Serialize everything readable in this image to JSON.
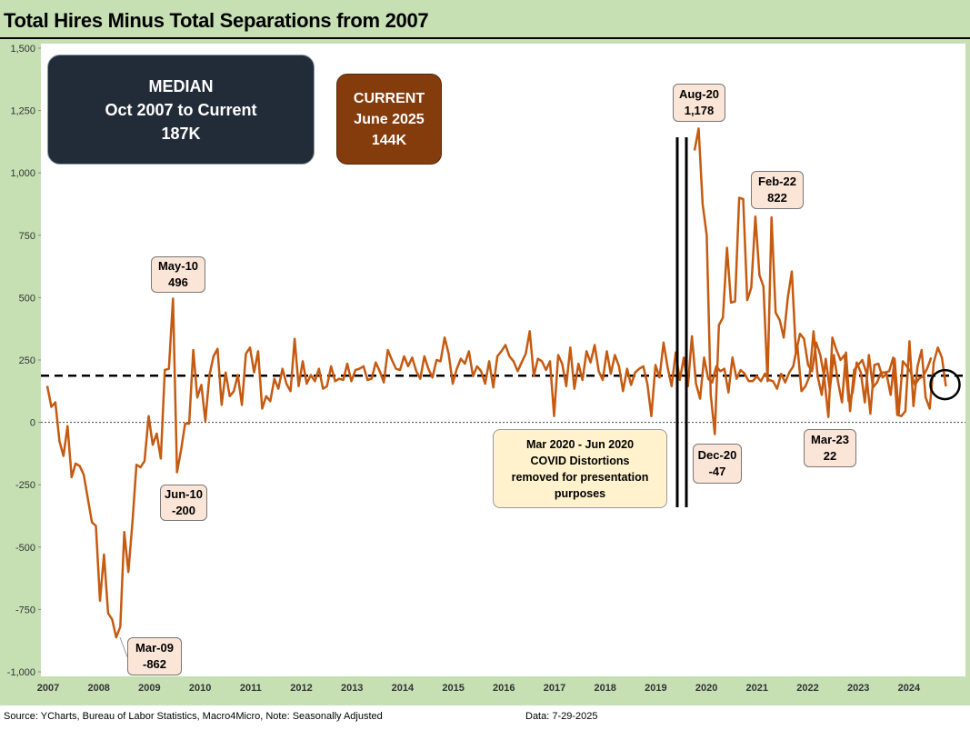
{
  "title": "Total Hires Minus Total Separations from 2007",
  "median_box": {
    "line1": "MEDIAN",
    "line2": "Oct 2007 to Current",
    "line3": "187K"
  },
  "current_box": {
    "line1": "CURRENT",
    "line2": "June 2025",
    "line3": "144K"
  },
  "covid_note": {
    "line1": "Mar 2020  - Jun 2020",
    "line2": "COVID Distortions",
    "line3": "removed for presentation",
    "line4": "purposes"
  },
  "footer": {
    "source": "Source: YCharts, Bureau of Labor Statistics, Macro4Micro, Note: Seasonally Adjusted",
    "data_date": "Data: 7-29-2025"
  },
  "callouts": {
    "may10": {
      "label": "May-10",
      "value": "496"
    },
    "jun10": {
      "label": "Jun-10",
      "value": "-200"
    },
    "mar09": {
      "label": "Mar-09",
      "value": "-862"
    },
    "aug20": {
      "label": "Aug-20",
      "value": "1,178"
    },
    "dec20": {
      "label": "Dec-20",
      "value": "-47"
    },
    "feb22": {
      "label": "Feb-22",
      "value": "822"
    },
    "mar23": {
      "label": "Mar-23",
      "value": "22"
    }
  },
  "colors": {
    "series": "#c55a11",
    "median_line": "#000000",
    "zero_line": "#444444"
  },
  "chart_data": {
    "type": "line",
    "title": "Total Hires Minus Total Separations from 2007",
    "y_ticks": [
      "1,500",
      "1,250",
      "1,000",
      "750",
      "500",
      "250",
      "0",
      "-250",
      "-500",
      "-750",
      "-1,000"
    ],
    "ylim": [
      -1000,
      1500
    ],
    "x_ticks": [
      "2007",
      "2008",
      "2009",
      "2010",
      "2011",
      "2012",
      "2013",
      "2014",
      "2015",
      "2016",
      "2017",
      "2018",
      "2019",
      "2020",
      "2021",
      "2022",
      "2023",
      "2024"
    ],
    "median": 187,
    "grid": false,
    "series": [
      {
        "segment": "Oct 2007 - Feb 2020",
        "values": [
          146,
          62,
          80,
          -75,
          -135,
          -15,
          -220,
          -165,
          -175,
          -210,
          -305,
          -400,
          -415,
          -715,
          -530,
          -765,
          -790,
          -862,
          -820,
          -440,
          -600,
          -400,
          -170,
          -180,
          -155,
          25,
          -90,
          -45,
          -145,
          210,
          215,
          496,
          -200,
          -110,
          -5,
          -5,
          290,
          100,
          150,
          5,
          190,
          265,
          295,
          70,
          200,
          105,
          125,
          190,
          70,
          275,
          300,
          200,
          285,
          55,
          105,
          85,
          175,
          135,
          215,
          155,
          125,
          335,
          145,
          245,
          155,
          190,
          165,
          215,
          135,
          145,
          225,
          165,
          175,
          170,
          235,
          165,
          210,
          215,
          225,
          170,
          175,
          240,
          205,
          160,
          290,
          250,
          215,
          210,
          265,
          225,
          260,
          205,
          175,
          265,
          215,
          180,
          250,
          245,
          340,
          275,
          155,
          215,
          255,
          235,
          285,
          185,
          225,
          205,
          155,
          245,
          140,
          265,
          285,
          310,
          265,
          245,
          205,
          240,
          275,
          365,
          185,
          255,
          245,
          210,
          245,
          25,
          270,
          235,
          145,
          300,
          135,
          235,
          170,
          285,
          240,
          310,
          205,
          170,
          285,
          195,
          270,
          225,
          125,
          215,
          150,
          200,
          215,
          225,
          155,
          25,
          230,
          180,
          320,
          220,
          145,
          280,
          170,
          260,
          145,
          345,
          155,
          95,
          260,
          175,
          160,
          225,
          205,
          215,
          120,
          260,
          175,
          210,
          195,
          165,
          165,
          185,
          165,
          195,
          170,
          165,
          135,
          195,
          160,
          200,
          225,
          310,
          125,
          145,
          185,
          365,
          185,
          110,
          255,
          130,
          270,
          165,
          80,
          280,
          45,
          210,
          230,
          250,
          200,
          35,
          230,
          235,
          180,
          195,
          110,
          255,
          35,
          245,
          225,
          200,
          150,
          175,
          185,
          215,
          260
        ]
      },
      {
        "segment": "Jul 2020 - Jun 2025",
        "values": [
          1090,
          1178,
          875,
          750,
          110,
          -47,
          390,
          420,
          700,
          480,
          485,
          900,
          895,
          490,
          540,
          825,
          590,
          545,
          165,
          822,
          440,
          410,
          340,
          500,
          605,
          280,
          355,
          335,
          230,
          205,
          320,
          270,
          180,
          22,
          340,
          290,
          250,
          270,
          85,
          120,
          240,
          200,
          80,
          270,
          140,
          160,
          200,
          200,
          205,
          260,
          30,
          25,
          45,
          325,
          65,
          225,
          290,
          100,
          55,
          240,
          300,
          260,
          144
        ]
      }
    ]
  }
}
